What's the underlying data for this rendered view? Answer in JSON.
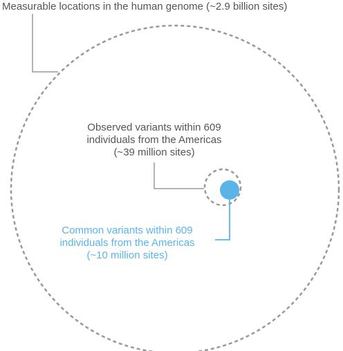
{
  "labels": {
    "genome": "Measurable locations in the human genome (~2.9 billion sites)",
    "observed": {
      "line1": "Observed variants within 609",
      "line2": "individuals from the Americas",
      "line3": "(~39 million sites)"
    },
    "common": {
      "line1": "Common variants within 609",
      "line2": "individuals from the Americas",
      "line3": "(~10 million sites)"
    }
  },
  "colors": {
    "outline": "#999999",
    "leader": "#9a9a9a",
    "text": "#555555",
    "common": "#5ab4e8"
  }
}
